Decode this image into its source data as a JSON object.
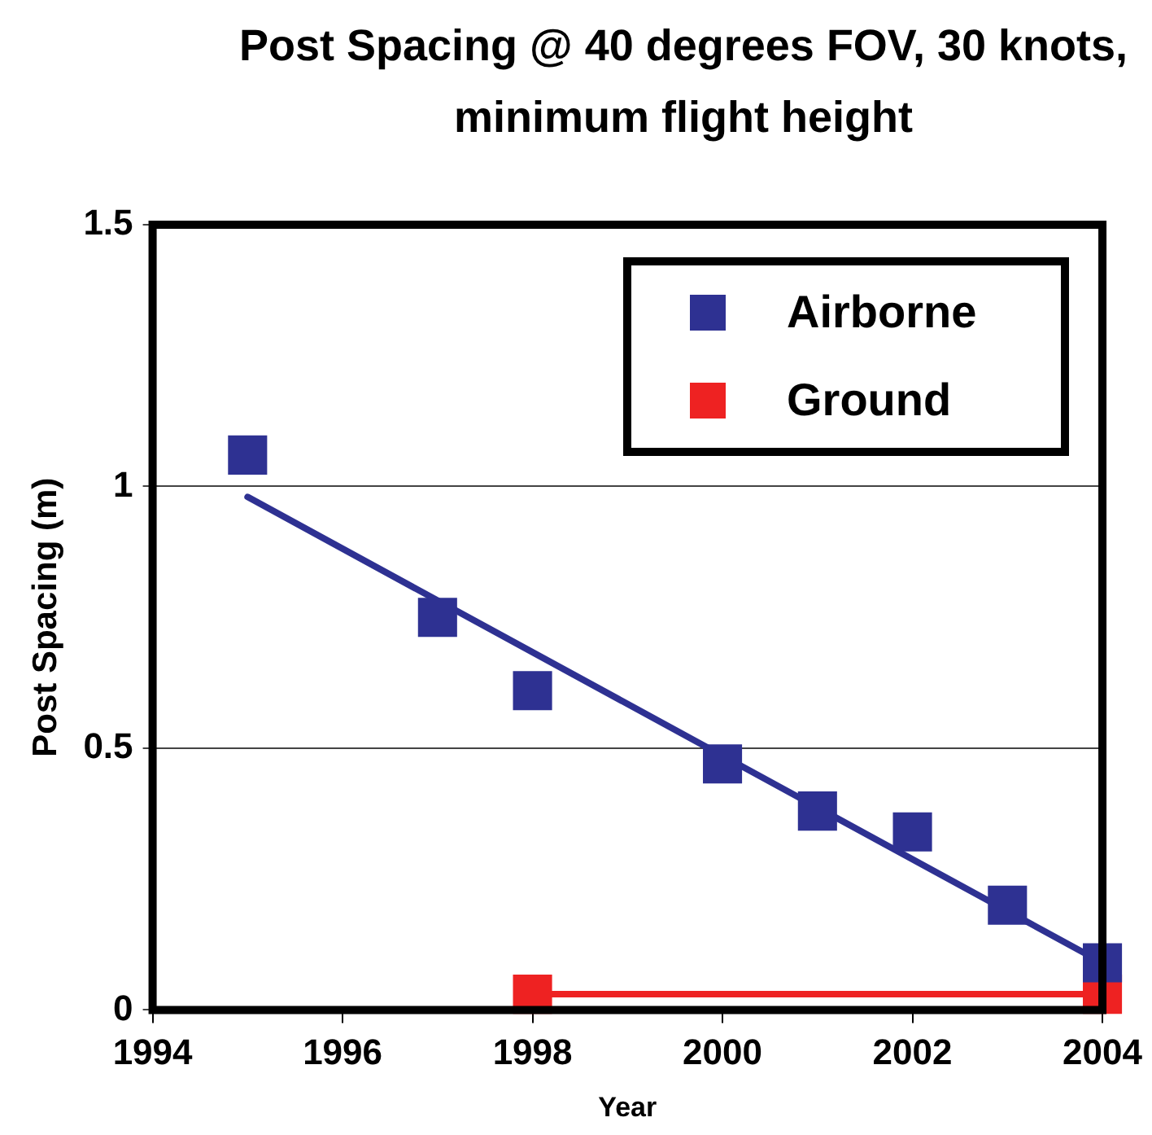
{
  "chart_data": {
    "type": "scatter",
    "title": "Post Spacing @ 40 degrees FOV, 30 knots, minimum flight height",
    "xlabel": "Year",
    "ylabel": "Post Spacing (m)",
    "xlim": [
      1994,
      2004
    ],
    "xticks": [
      1994,
      1996,
      1998,
      2000,
      2002,
      2004
    ],
    "ylim": [
      0,
      1.5
    ],
    "yticks": [
      0,
      0.5,
      1,
      1.5
    ],
    "grid": "y",
    "legend": "top right",
    "series": [
      {
        "name": "Airborne",
        "type": "scatter",
        "marker": "square",
        "color": "#2e3192",
        "x": [
          1995,
          1997,
          1998,
          2000,
          2001,
          2002,
          2003,
          2004
        ],
        "values": [
          1.06,
          0.75,
          0.61,
          0.47,
          0.38,
          0.34,
          0.2,
          0.09
        ]
      },
      {
        "type": "line",
        "marker": "none",
        "color": "#2e3192",
        "x": [
          1995,
          2004
        ],
        "values": [
          0.98,
          0.09
        ]
      },
      {
        "name": "Ground",
        "type": "line",
        "marker": "square",
        "color": "#ee2222",
        "x": [
          1998,
          2004
        ],
        "values": [
          0.03,
          0.03
        ]
      }
    ]
  }
}
